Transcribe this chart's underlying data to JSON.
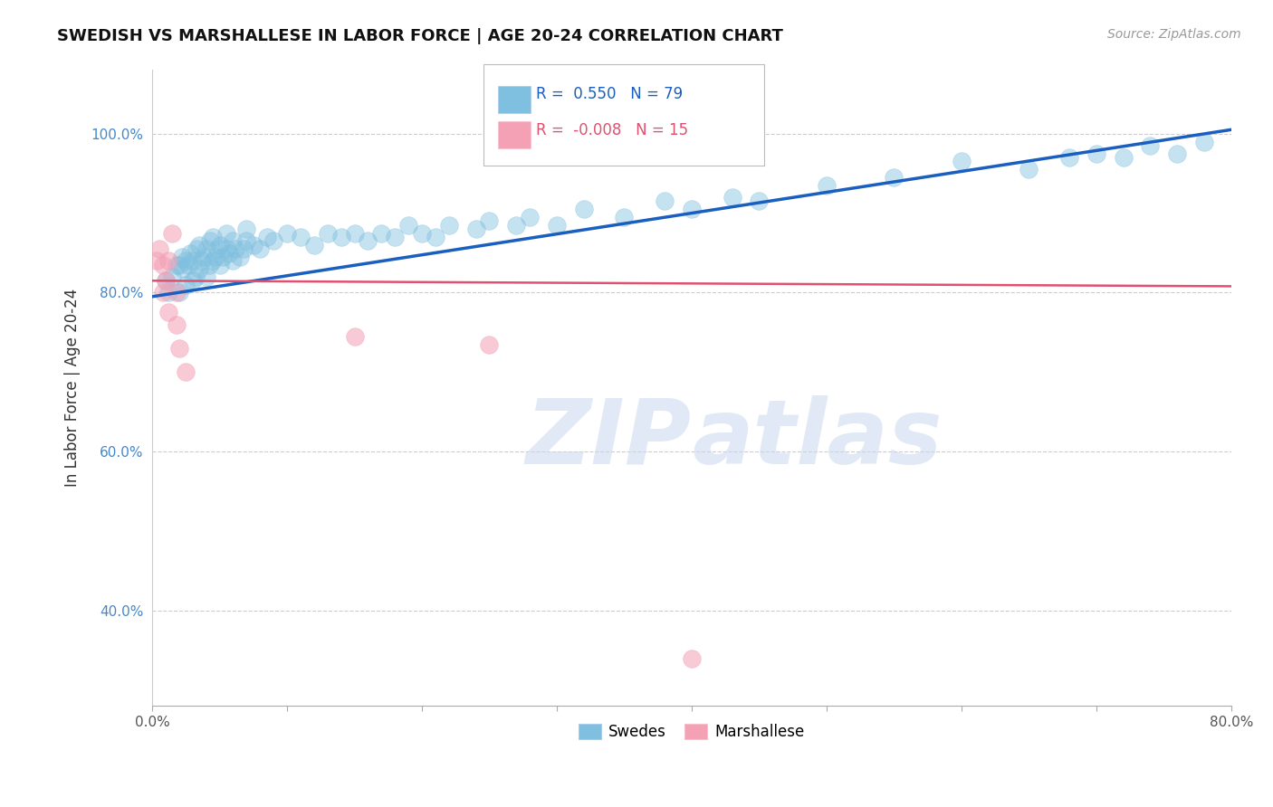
{
  "title": "SWEDISH VS MARSHALLESE IN LABOR FORCE | AGE 20-24 CORRELATION CHART",
  "source": "Source: ZipAtlas.com",
  "ylabel": "In Labor Force | Age 20-24",
  "xlim": [
    0.0,
    0.8
  ],
  "ylim": [
    0.28,
    1.08
  ],
  "xticks": [
    0.0,
    0.1,
    0.2,
    0.3,
    0.4,
    0.5,
    0.6,
    0.7,
    0.8
  ],
  "yticks": [
    0.4,
    0.6,
    0.8,
    1.0
  ],
  "yticklabels": [
    "40.0%",
    "60.0%",
    "80.0%",
    "100.0%"
  ],
  "grid_color": "#cccccc",
  "background_color": "#ffffff",
  "blue_color": "#7fbfdf",
  "pink_color": "#f4a0b5",
  "blue_line_color": "#1a5fbf",
  "pink_line_color": "#e05070",
  "legend_R_blue": "0.550",
  "legend_N_blue": "79",
  "legend_R_pink": "-0.008",
  "legend_N_pink": "15",
  "blue_scatter_x": [
    0.01,
    0.012,
    0.015,
    0.018,
    0.02,
    0.02,
    0.022,
    0.023,
    0.025,
    0.025,
    0.027,
    0.028,
    0.03,
    0.03,
    0.032,
    0.033,
    0.035,
    0.035,
    0.037,
    0.038,
    0.04,
    0.04,
    0.042,
    0.043,
    0.045,
    0.045,
    0.047,
    0.048,
    0.05,
    0.05,
    0.052,
    0.055,
    0.055,
    0.057,
    0.06,
    0.06,
    0.062,
    0.065,
    0.068,
    0.07,
    0.07,
    0.075,
    0.08,
    0.085,
    0.09,
    0.1,
    0.11,
    0.12,
    0.13,
    0.14,
    0.15,
    0.16,
    0.17,
    0.18,
    0.19,
    0.2,
    0.21,
    0.22,
    0.24,
    0.25,
    0.27,
    0.28,
    0.3,
    0.32,
    0.35,
    0.38,
    0.4,
    0.43,
    0.45,
    0.5,
    0.55,
    0.6,
    0.65,
    0.68,
    0.7,
    0.72,
    0.74,
    0.76,
    0.78
  ],
  "blue_scatter_y": [
    0.815,
    0.8,
    0.82,
    0.835,
    0.8,
    0.835,
    0.845,
    0.83,
    0.81,
    0.84,
    0.835,
    0.85,
    0.815,
    0.84,
    0.82,
    0.855,
    0.83,
    0.86,
    0.84,
    0.845,
    0.82,
    0.855,
    0.835,
    0.865,
    0.84,
    0.87,
    0.845,
    0.855,
    0.835,
    0.86,
    0.845,
    0.855,
    0.875,
    0.85,
    0.84,
    0.865,
    0.855,
    0.845,
    0.855,
    0.865,
    0.88,
    0.86,
    0.855,
    0.87,
    0.865,
    0.875,
    0.87,
    0.86,
    0.875,
    0.87,
    0.875,
    0.865,
    0.875,
    0.87,
    0.885,
    0.875,
    0.87,
    0.885,
    0.88,
    0.89,
    0.885,
    0.895,
    0.885,
    0.905,
    0.895,
    0.915,
    0.905,
    0.92,
    0.915,
    0.935,
    0.945,
    0.965,
    0.955,
    0.97,
    0.975,
    0.97,
    0.985,
    0.975,
    0.99
  ],
  "pink_scatter_x": [
    0.003,
    0.005,
    0.008,
    0.008,
    0.01,
    0.012,
    0.012,
    0.015,
    0.018,
    0.018,
    0.02,
    0.025,
    0.15,
    0.25,
    0.4
  ],
  "pink_scatter_y": [
    0.84,
    0.855,
    0.8,
    0.835,
    0.815,
    0.84,
    0.775,
    0.875,
    0.8,
    0.76,
    0.73,
    0.7,
    0.745,
    0.735,
    0.34
  ],
  "blue_trend_x": [
    0.0,
    0.8
  ],
  "blue_trend_y": [
    0.795,
    1.005
  ],
  "pink_trend_x": [
    0.0,
    0.8
  ],
  "pink_trend_y": [
    0.815,
    0.808
  ]
}
